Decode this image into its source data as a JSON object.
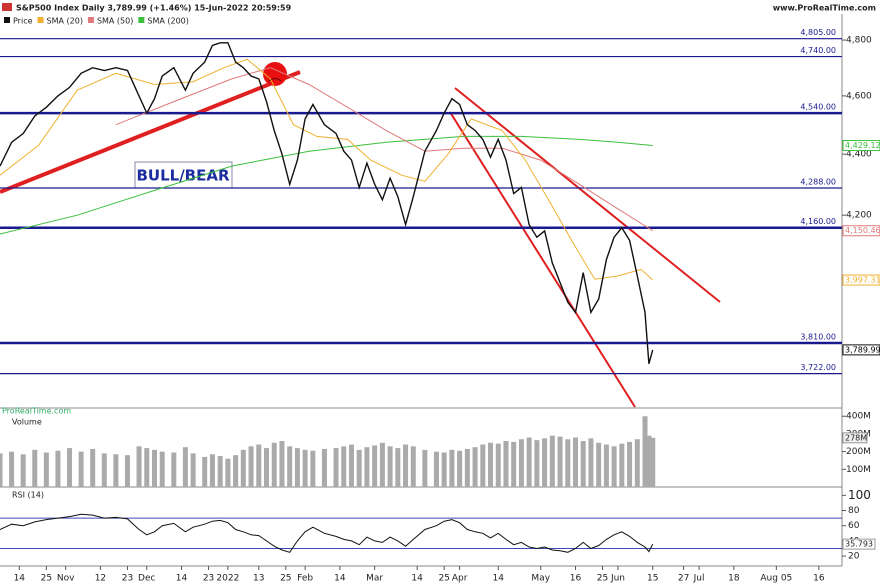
{
  "header": {
    "title": "S&P500 Index Daily 3,789.99 (+1.46%) 15-Jun-2022 20:59:59",
    "site": "www.ProRealTime.com",
    "watermark": "ProRealTime.com",
    "annotation": "BULL/BEAR"
  },
  "chart_data": {
    "type": "line",
    "log_scale": true,
    "x": [
      0,
      3,
      6,
      9,
      12,
      15,
      18,
      21,
      24,
      27,
      30,
      33,
      36,
      38,
      40,
      42,
      45,
      48,
      50,
      53,
      55,
      57,
      59,
      61,
      63,
      65,
      67,
      69,
      71,
      73,
      75,
      77,
      79,
      81,
      84,
      87,
      89,
      91,
      93,
      95,
      97,
      99,
      101,
      103,
      105,
      107,
      110,
      113,
      115,
      117,
      119,
      121,
      123,
      125,
      127,
      129,
      131,
      133,
      135,
      137,
      139,
      141,
      143,
      145,
      147,
      149,
      151,
      153,
      155,
      157,
      159,
      161,
      163,
      165,
      167,
      168,
      169
    ],
    "xlim": [
      0,
      218
    ],
    "xticks": [
      {
        "value": 5,
        "label": "14"
      },
      {
        "value": 12,
        "label": "25"
      },
      {
        "value": 17,
        "label": "Nov"
      },
      {
        "value": 26,
        "label": "12"
      },
      {
        "value": 33,
        "label": "23"
      },
      {
        "value": 38,
        "label": "Dec"
      },
      {
        "value": 47,
        "label": "14"
      },
      {
        "value": 54,
        "label": "23"
      },
      {
        "value": 59,
        "label": "2022"
      },
      {
        "value": 67,
        "label": "13"
      },
      {
        "value": 74,
        "label": "25"
      },
      {
        "value": 79,
        "label": "Feb"
      },
      {
        "value": 88,
        "label": "14"
      },
      {
        "value": 97,
        "label": "Mar"
      },
      {
        "value": 108,
        "label": "14"
      },
      {
        "value": 115,
        "label": "25"
      },
      {
        "value": 119,
        "label": "Apr"
      },
      {
        "value": 129,
        "label": "14"
      },
      {
        "value": 140,
        "label": "May"
      },
      {
        "value": 149,
        "label": "16"
      },
      {
        "value": 156,
        "label": "25"
      },
      {
        "value": 160,
        "label": "Jun"
      },
      {
        "value": 169,
        "label": "15"
      },
      {
        "value": 177,
        "label": "27"
      },
      {
        "value": 181,
        "label": "Jul"
      },
      {
        "value": 190,
        "label": "18"
      },
      {
        "value": 201,
        "label": "Aug 05"
      },
      {
        "value": 212,
        "label": "16"
      }
    ],
    "ylim": [
      3634,
      4837
    ],
    "yticks": [
      {
        "value": 4200,
        "label": "4,200"
      },
      {
        "value": 4400,
        "label": "4,400"
      },
      {
        "value": 4600,
        "label": "4,600"
      },
      {
        "value": 4800,
        "label": "4,800"
      }
    ],
    "levels": [
      {
        "value": 4805,
        "label": "4,805.00",
        "thick": false
      },
      {
        "value": 4740,
        "label": "4,740.00",
        "thick": false
      },
      {
        "value": 4540,
        "label": "4,540.00",
        "thick": true
      },
      {
        "value": 4288,
        "label": "4,288.00",
        "thick": false
      },
      {
        "value": 4160,
        "label": "4,160.00",
        "thick": true
      },
      {
        "value": 3810,
        "label": "3,810.00",
        "thick": true
      },
      {
        "value": 3722,
        "label": "3,722.00",
        "thick": false
      }
    ],
    "series": [
      {
        "name": "Price",
        "color": "#111111",
        "last_label": "3,789.99",
        "values": [
          4360,
          4440,
          4470,
          4530,
          4560,
          4600,
          4630,
          4680,
          4700,
          4690,
          4700,
          4690,
          4600,
          4540,
          4590,
          4670,
          4700,
          4620,
          4680,
          4720,
          4780,
          4790,
          4790,
          4720,
          4700,
          4670,
          4660,
          4580,
          4480,
          4400,
          4300,
          4380,
          4520,
          4570,
          4500,
          4470,
          4410,
          4380,
          4290,
          4370,
          4300,
          4250,
          4320,
          4260,
          4170,
          4260,
          4410,
          4480,
          4540,
          4590,
          4570,
          4500,
          4480,
          4450,
          4390,
          4450,
          4380,
          4270,
          4290,
          4170,
          4130,
          4150,
          4050,
          3990,
          3930,
          3900,
          4020,
          3900,
          3940,
          4060,
          4130,
          4160,
          4120,
          4010,
          3900,
          3750,
          3789.99
        ]
      },
      {
        "name": "SMA (20)",
        "color": "#f0b030",
        "last_label": "3,997.31",
        "x": [
          0,
          10,
          20,
          30,
          40,
          50,
          58,
          64,
          70,
          76,
          82,
          90,
          96,
          104,
          110,
          116,
          122,
          130,
          136,
          142,
          148,
          154,
          160,
          166,
          169
        ],
        "values": [
          4330,
          4430,
          4620,
          4680,
          4640,
          4650,
          4700,
          4730,
          4660,
          4500,
          4460,
          4450,
          4380,
          4330,
          4310,
          4400,
          4520,
          4480,
          4380,
          4250,
          4120,
          4000,
          4010,
          4030,
          3997.31
        ]
      },
      {
        "name": "SMA (50)",
        "color": "#e07a7a",
        "last_label": "4,150.46",
        "x": [
          30,
          45,
          60,
          70,
          80,
          90,
          100,
          110,
          120,
          130,
          140,
          150,
          160,
          169
        ],
        "values": [
          4500,
          4580,
          4660,
          4700,
          4640,
          4560,
          4480,
          4410,
          4420,
          4420,
          4380,
          4300,
          4220,
          4150.46
        ]
      },
      {
        "name": "SMA (200)",
        "color": "#3cc03c",
        "last_label": "4,429.12",
        "x": [
          0,
          20,
          40,
          60,
          80,
          100,
          120,
          135,
          150,
          160,
          169
        ],
        "values": [
          4140,
          4200,
          4280,
          4360,
          4410,
          4440,
          4460,
          4460,
          4450,
          4440,
          4429.12
        ]
      }
    ],
    "volume": {
      "name": "Volume",
      "color": "#aaaaaa",
      "last_label": "278M",
      "ylim": [
        0,
        424
      ],
      "yticks": [
        {
          "value": 100,
          "label": "100M"
        },
        {
          "value": 200,
          "label": "200M"
        },
        {
          "value": 300,
          "label": "300M"
        },
        {
          "value": 400,
          "label": "400M"
        }
      ],
      "values": [
        190,
        200,
        185,
        210,
        195,
        205,
        220,
        200,
        215,
        190,
        185,
        180,
        230,
        220,
        210,
        200,
        195,
        225,
        190,
        170,
        185,
        175,
        160,
        180,
        210,
        230,
        240,
        220,
        250,
        260,
        230,
        220,
        210,
        205,
        215,
        220,
        230,
        240,
        210,
        225,
        235,
        250,
        230,
        220,
        240,
        230,
        210,
        200,
        195,
        210,
        205,
        215,
        225,
        240,
        250,
        245,
        260,
        255,
        270,
        280,
        265,
        275,
        290,
        285,
        270,
        280,
        260,
        275,
        250,
        240,
        230,
        245,
        255,
        270,
        400,
        290,
        278
      ]
    },
    "rsi": {
      "name": "RSI (14)",
      "color": "#111111",
      "last_label": "35.793",
      "ylim": [
        7,
        107
      ],
      "yticks": [
        20,
        40,
        60,
        80,
        100
      ],
      "bands": [
        30,
        70
      ],
      "values": [
        55,
        62,
        60,
        65,
        68,
        70,
        72,
        75,
        74,
        70,
        71,
        69,
        55,
        48,
        52,
        60,
        63,
        52,
        58,
        62,
        66,
        67,
        64,
        55,
        52,
        48,
        47,
        40,
        33,
        28,
        25,
        40,
        52,
        58,
        50,
        46,
        42,
        40,
        35,
        45,
        40,
        38,
        45,
        40,
        33,
        42,
        55,
        60,
        66,
        68,
        64,
        55,
        52,
        50,
        44,
        50,
        42,
        35,
        38,
        32,
        30,
        32,
        28,
        27,
        25,
        30,
        38,
        30,
        34,
        42,
        48,
        52,
        46,
        38,
        32,
        26,
        35.793
      ]
    }
  }
}
